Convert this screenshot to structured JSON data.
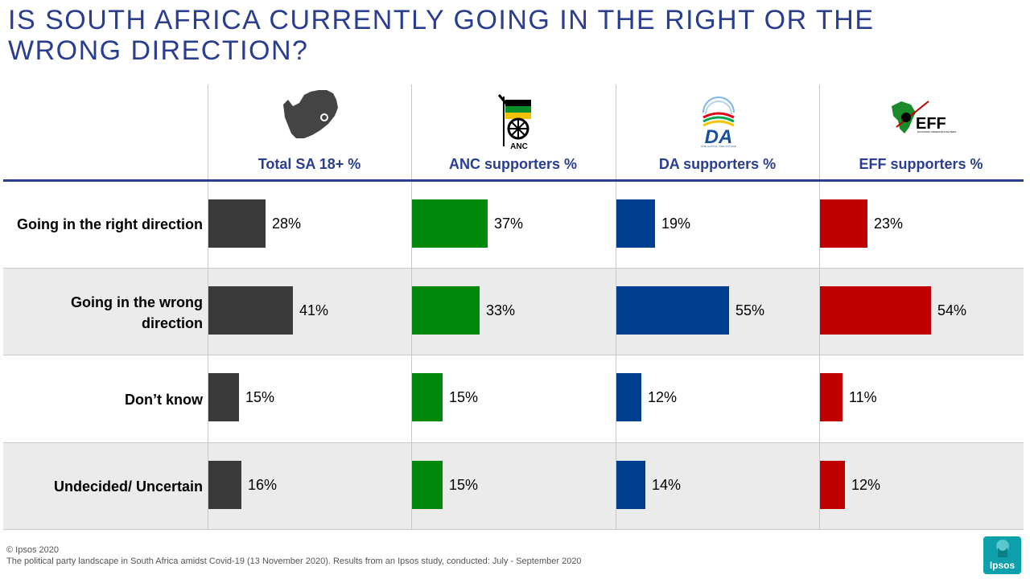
{
  "title": "IS SOUTH AFRICA CURRENTLY GOING IN THE RIGHT OR THE WRONG DIRECTION?",
  "chart_data": {
    "type": "bar",
    "orientation": "horizontal",
    "title": "IS SOUTH AFRICA CURRENTLY GOING IN THE RIGHT OR THE WRONG DIRECTION?",
    "categories": [
      "Going in the right direction",
      "Going in the wrong direction",
      "Don’t know",
      "Undecided/ Uncertain"
    ],
    "unit": "%",
    "ylim": [
      0,
      100
    ],
    "series": [
      {
        "name": "Total SA 18+ %",
        "color": "#3a3a3a",
        "values": [
          28,
          41,
          15,
          16
        ]
      },
      {
        "name": "ANC supporters %",
        "color": "#00880a",
        "values": [
          37,
          33,
          15,
          15
        ]
      },
      {
        "name": "DA supporters %",
        "color": "#003f8f",
        "values": [
          19,
          55,
          12,
          14
        ]
      },
      {
        "name": "EFF supporters %",
        "color": "#c00000",
        "values": [
          23,
          54,
          11,
          12
        ]
      }
    ]
  },
  "logos": {
    "total": "south-africa-map-icon",
    "anc": {
      "icon": "anc-logo",
      "text": "ANC"
    },
    "da": {
      "icon": "da-logo",
      "text": "DA",
      "tagline": "ONE NATION, ONE FUTURE"
    },
    "eff": {
      "icon": "eff-logo",
      "text": "EFF",
      "tagline": "ECONOMIC FREEDOM FIGHTERS"
    }
  },
  "footer": {
    "copyright": "© Ipsos 2020",
    "source": "The political party landscape in South Africa amidst Covid-19 (13 November 2020). Results from an Ipsos study, conducted: July - September 2020"
  },
  "brand": {
    "name": "Ipsos",
    "color": "#0d9fab"
  }
}
